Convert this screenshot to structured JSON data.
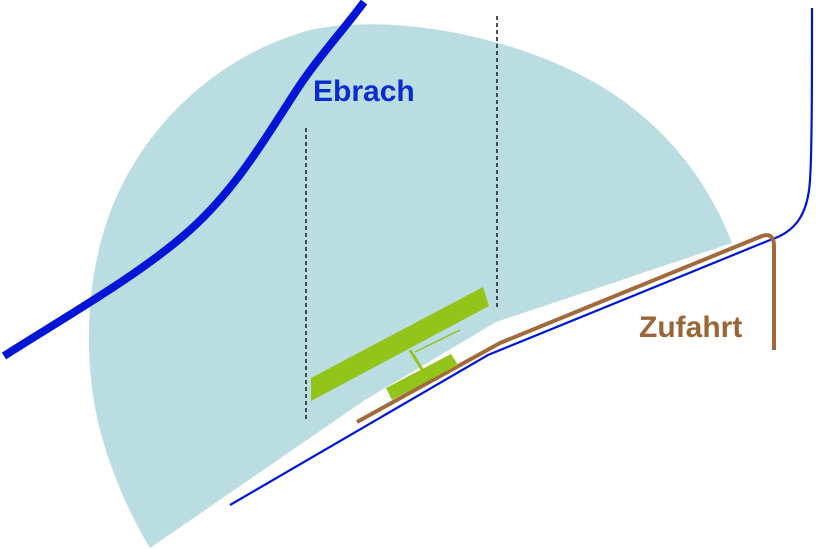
{
  "labels": {
    "river": "Ebrach",
    "access_road": "Zufahrt"
  },
  "colors": {
    "background": "#ffffff",
    "zone_fill": "#badde1",
    "river": "#0016d6",
    "river_label": "#0a2ccf",
    "road": "#a06a3a",
    "road_label": "#9a6638",
    "roadside_line": "#0016d6",
    "structure": "#92c41a",
    "dashed_line": "#1a1a1a"
  }
}
